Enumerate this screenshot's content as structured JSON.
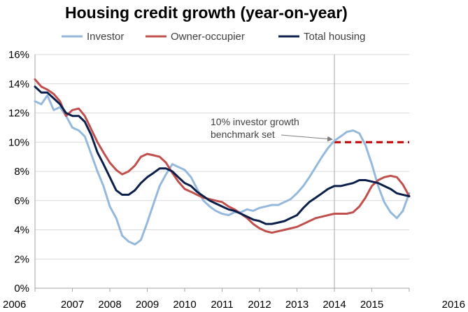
{
  "chart_data": {
    "type": "line",
    "title": "Housing credit growth (year-on-year)",
    "xlabel": "",
    "ylabel": "",
    "xlim": [
      2006,
      2016
    ],
    "ylim": [
      0,
      16
    ],
    "x_ticks": [
      "2006",
      "2007",
      "2008",
      "2009",
      "2010",
      "2011",
      "2012",
      "2013",
      "2014",
      "2015",
      "2016"
    ],
    "y_ticks": [
      "0%",
      "2%",
      "4%",
      "6%",
      "8%",
      "10%",
      "12%",
      "14%",
      "16%"
    ],
    "grid": "horizontal",
    "legend_position": "top",
    "series": [
      {
        "name": "Investor",
        "color": "#95b9dc",
        "points": [
          [
            2006.0,
            12.8
          ],
          [
            2006.17,
            12.6
          ],
          [
            2006.33,
            13.2
          ],
          [
            2006.5,
            12.2
          ],
          [
            2006.67,
            12.4
          ],
          [
            2006.83,
            11.8
          ],
          [
            2007.0,
            11.0
          ],
          [
            2007.17,
            10.8
          ],
          [
            2007.33,
            10.4
          ],
          [
            2007.5,
            9.2
          ],
          [
            2007.67,
            8.0
          ],
          [
            2007.83,
            7.0
          ],
          [
            2008.0,
            5.6
          ],
          [
            2008.17,
            4.8
          ],
          [
            2008.33,
            3.6
          ],
          [
            2008.5,
            3.2
          ],
          [
            2008.67,
            3.0
          ],
          [
            2008.83,
            3.3
          ],
          [
            2009.0,
            4.5
          ],
          [
            2009.17,
            5.8
          ],
          [
            2009.33,
            7.0
          ],
          [
            2009.5,
            7.8
          ],
          [
            2009.67,
            8.5
          ],
          [
            2009.83,
            8.3
          ],
          [
            2010.0,
            8.1
          ],
          [
            2010.17,
            7.6
          ],
          [
            2010.33,
            6.8
          ],
          [
            2010.5,
            6.0
          ],
          [
            2010.67,
            5.6
          ],
          [
            2010.83,
            5.3
          ],
          [
            2011.0,
            5.1
          ],
          [
            2011.17,
            5.0
          ],
          [
            2011.33,
            5.2
          ],
          [
            2011.5,
            5.2
          ],
          [
            2011.67,
            5.4
          ],
          [
            2011.83,
            5.3
          ],
          [
            2012.0,
            5.5
          ],
          [
            2012.17,
            5.6
          ],
          [
            2012.33,
            5.7
          ],
          [
            2012.5,
            5.7
          ],
          [
            2012.67,
            5.9
          ],
          [
            2012.83,
            6.1
          ],
          [
            2013.0,
            6.5
          ],
          [
            2013.17,
            7.0
          ],
          [
            2013.33,
            7.6
          ],
          [
            2013.5,
            8.3
          ],
          [
            2013.67,
            9.0
          ],
          [
            2013.83,
            9.6
          ],
          [
            2014.0,
            10.1
          ],
          [
            2014.17,
            10.4
          ],
          [
            2014.33,
            10.7
          ],
          [
            2014.5,
            10.8
          ],
          [
            2014.67,
            10.6
          ],
          [
            2014.83,
            9.8
          ],
          [
            2015.0,
            8.5
          ],
          [
            2015.17,
            7.0
          ],
          [
            2015.33,
            5.9
          ],
          [
            2015.5,
            5.2
          ],
          [
            2015.67,
            4.8
          ],
          [
            2015.83,
            5.3
          ],
          [
            2016.0,
            6.5
          ]
        ]
      },
      {
        "name": "Owner-occupier",
        "color": "#c0504d",
        "points": [
          [
            2006.0,
            14.3
          ],
          [
            2006.17,
            13.8
          ],
          [
            2006.33,
            13.6
          ],
          [
            2006.5,
            13.3
          ],
          [
            2006.67,
            12.8
          ],
          [
            2006.83,
            11.8
          ],
          [
            2007.0,
            12.2
          ],
          [
            2007.17,
            12.3
          ],
          [
            2007.33,
            11.8
          ],
          [
            2007.5,
            10.9
          ],
          [
            2007.67,
            10.0
          ],
          [
            2007.83,
            9.3
          ],
          [
            2008.0,
            8.6
          ],
          [
            2008.17,
            8.1
          ],
          [
            2008.33,
            7.8
          ],
          [
            2008.5,
            8.0
          ],
          [
            2008.67,
            8.4
          ],
          [
            2008.83,
            9.0
          ],
          [
            2009.0,
            9.2
          ],
          [
            2009.17,
            9.1
          ],
          [
            2009.33,
            9.0
          ],
          [
            2009.5,
            8.6
          ],
          [
            2009.67,
            7.9
          ],
          [
            2009.83,
            7.3
          ],
          [
            2010.0,
            6.8
          ],
          [
            2010.17,
            6.6
          ],
          [
            2010.33,
            6.4
          ],
          [
            2010.5,
            6.2
          ],
          [
            2010.67,
            6.1
          ],
          [
            2010.83,
            6.0
          ],
          [
            2011.0,
            5.9
          ],
          [
            2011.17,
            5.6
          ],
          [
            2011.33,
            5.4
          ],
          [
            2011.5,
            5.1
          ],
          [
            2011.67,
            4.8
          ],
          [
            2011.83,
            4.4
          ],
          [
            2012.0,
            4.1
          ],
          [
            2012.17,
            3.9
          ],
          [
            2012.33,
            3.8
          ],
          [
            2012.5,
            3.9
          ],
          [
            2012.67,
            4.0
          ],
          [
            2012.83,
            4.1
          ],
          [
            2013.0,
            4.2
          ],
          [
            2013.17,
            4.4
          ],
          [
            2013.33,
            4.6
          ],
          [
            2013.5,
            4.8
          ],
          [
            2013.67,
            4.9
          ],
          [
            2013.83,
            5.0
          ],
          [
            2014.0,
            5.1
          ],
          [
            2014.17,
            5.1
          ],
          [
            2014.33,
            5.1
          ],
          [
            2014.5,
            5.2
          ],
          [
            2014.67,
            5.6
          ],
          [
            2014.83,
            6.2
          ],
          [
            2015.0,
            7.0
          ],
          [
            2015.17,
            7.4
          ],
          [
            2015.33,
            7.6
          ],
          [
            2015.5,
            7.7
          ],
          [
            2015.67,
            7.6
          ],
          [
            2015.83,
            7.1
          ],
          [
            2016.0,
            6.3
          ]
        ]
      },
      {
        "name": "Total housing",
        "color": "#0b1f4a",
        "points": [
          [
            2006.0,
            13.8
          ],
          [
            2006.17,
            13.4
          ],
          [
            2006.33,
            13.4
          ],
          [
            2006.5,
            13.0
          ],
          [
            2006.67,
            12.6
          ],
          [
            2006.83,
            12.0
          ],
          [
            2007.0,
            11.8
          ],
          [
            2007.17,
            11.8
          ],
          [
            2007.33,
            11.4
          ],
          [
            2007.5,
            10.5
          ],
          [
            2007.67,
            9.3
          ],
          [
            2007.83,
            8.5
          ],
          [
            2008.0,
            7.6
          ],
          [
            2008.17,
            6.7
          ],
          [
            2008.33,
            6.4
          ],
          [
            2008.5,
            6.4
          ],
          [
            2008.67,
            6.7
          ],
          [
            2008.83,
            7.2
          ],
          [
            2009.0,
            7.6
          ],
          [
            2009.17,
            7.9
          ],
          [
            2009.33,
            8.2
          ],
          [
            2009.5,
            8.2
          ],
          [
            2009.67,
            8.0
          ],
          [
            2009.83,
            7.6
          ],
          [
            2010.0,
            7.2
          ],
          [
            2010.17,
            7.0
          ],
          [
            2010.33,
            6.6
          ],
          [
            2010.5,
            6.3
          ],
          [
            2010.67,
            6.0
          ],
          [
            2010.83,
            5.8
          ],
          [
            2011.0,
            5.6
          ],
          [
            2011.17,
            5.4
          ],
          [
            2011.33,
            5.3
          ],
          [
            2011.5,
            5.1
          ],
          [
            2011.67,
            4.9
          ],
          [
            2011.83,
            4.7
          ],
          [
            2012.0,
            4.6
          ],
          [
            2012.17,
            4.4
          ],
          [
            2012.33,
            4.4
          ],
          [
            2012.5,
            4.5
          ],
          [
            2012.67,
            4.6
          ],
          [
            2012.83,
            4.8
          ],
          [
            2013.0,
            5.0
          ],
          [
            2013.17,
            5.5
          ],
          [
            2013.33,
            5.9
          ],
          [
            2013.5,
            6.2
          ],
          [
            2013.67,
            6.5
          ],
          [
            2013.83,
            6.8
          ],
          [
            2014.0,
            7.0
          ],
          [
            2014.17,
            7.0
          ],
          [
            2014.33,
            7.1
          ],
          [
            2014.5,
            7.2
          ],
          [
            2014.67,
            7.4
          ],
          [
            2014.83,
            7.4
          ],
          [
            2015.0,
            7.3
          ],
          [
            2015.17,
            7.2
          ],
          [
            2015.33,
            7.0
          ],
          [
            2015.5,
            6.8
          ],
          [
            2015.67,
            6.5
          ],
          [
            2015.83,
            6.4
          ],
          [
            2016.0,
            6.3
          ]
        ]
      }
    ],
    "reference_lines": [
      {
        "type": "vertical",
        "x": 2014.0,
        "color": "#a6a6a6"
      },
      {
        "type": "horizontal-dashed",
        "x_start": 2014.0,
        "x_end": 2016.0,
        "y": 10.0,
        "color": "#c00000"
      }
    ],
    "annotation": {
      "lines": [
        "10% investor growth",
        "benchmark set"
      ],
      "arrow_to": [
        2014.0,
        10.1
      ]
    }
  }
}
